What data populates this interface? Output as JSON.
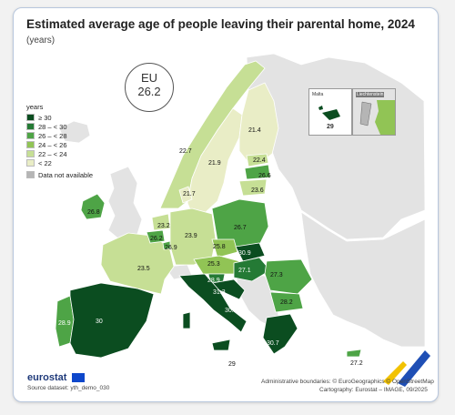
{
  "title": "Estimated average age of people leaving their parental home, 2024",
  "subtitle": "(years)",
  "eu_badge": {
    "line1": "EU",
    "line2": "26.2"
  },
  "legend": {
    "title": "years",
    "classes": [
      {
        "label": "≥ 30",
        "color": "#0b4d20"
      },
      {
        "label": "28 – < 30",
        "color": "#247a35"
      },
      {
        "label": "26 – < 28",
        "color": "#4ea446"
      },
      {
        "label": "24 – < 26",
        "color": "#91c455"
      },
      {
        "label": "22 – < 24",
        "color": "#c6df95"
      },
      {
        "label": "< 22",
        "color": "#e9edc6"
      }
    ],
    "not_available": {
      "label": "Data not available",
      "color": "#b5b5b5"
    }
  },
  "colors": {
    "non_eu": "#e3e3e3",
    "sea": "#ffffff",
    "border": "#ffffff"
  },
  "insets": {
    "malta": {
      "name": "Malta",
      "value": "29"
    },
    "second": {
      "name": "Liechtenstein"
    }
  },
  "country_values": {
    "iceland": "",
    "ireland": "26.8",
    "portugal": "28.9",
    "spain": "30",
    "france": "23.5",
    "belgium": "26.2",
    "netherlands": "23.2",
    "luxembourg": "26.9",
    "germany": "23.9",
    "denmark": "21.7",
    "norway": "22.7",
    "sweden": "21.9",
    "finland": "21.4",
    "estonia": "22.4",
    "latvia": "26.6",
    "lithuania": "23.6",
    "poland": "26.7",
    "czechia": "25.8",
    "slovakia": "30.9",
    "austria": "25.3",
    "hungary": "27.1",
    "slovenia": "28.9",
    "croatia": "31.3",
    "romania": "27.3",
    "bulgaria": "28.2",
    "italy": "30.1",
    "greece": "30.7",
    "malta_main": "29",
    "cyprus": "27.2"
  },
  "footer": {
    "brand": "eurostat",
    "source": "Source dataset: yth_demo_030",
    "boundaries": "Administrative boundaries: © EuroGeographics © OpenStreetMap",
    "cartography": "Cartography: Eurostat – IMAGE, 09/2025"
  }
}
